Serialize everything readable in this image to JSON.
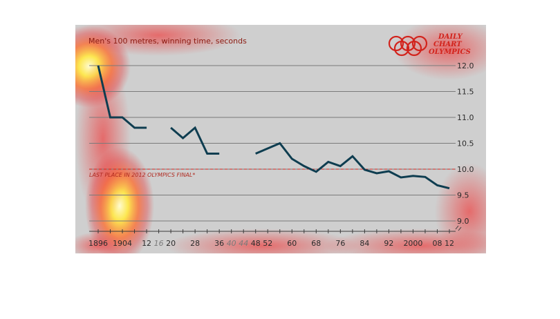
{
  "colors": {
    "line": "#0e3d50",
    "accent": "#d2231c",
    "grid": "#7a7a7a",
    "background": "#cfcfcf"
  },
  "branding": {
    "lines": [
      "DAILY",
      "CHART",
      "OLYMPICS"
    ],
    "logo": "olympic-rings-icon"
  },
  "chart_data": {
    "type": "line",
    "title": "Men's 100 metres, winning time, seconds",
    "xlabel": "",
    "ylabel": "",
    "ylim": [
      9.0,
      12.0
    ],
    "yticks": [
      "12.0",
      "11.5",
      "11.0",
      "10.5",
      "10.0",
      "9.5",
      "9.0"
    ],
    "ytick_values": [
      12.0,
      11.5,
      11.0,
      10.5,
      10.0,
      9.5,
      9.0
    ],
    "axis_break": true,
    "grid": true,
    "xticks": [
      {
        "label": "1896",
        "year": 1896,
        "missing": false
      },
      {
        "label": "1904",
        "year": 1904,
        "missing": false
      },
      {
        "label": "12",
        "year": 1912,
        "missing": false
      },
      {
        "label": "16",
        "year": 1916,
        "missing": true
      },
      {
        "label": "20",
        "year": 1920,
        "missing": false
      },
      {
        "label": "28",
        "year": 1928,
        "missing": false
      },
      {
        "label": "36",
        "year": 1936,
        "missing": false
      },
      {
        "label": "40",
        "year": 1940,
        "missing": true
      },
      {
        "label": "44",
        "year": 1944,
        "missing": true
      },
      {
        "label": "48",
        "year": 1948,
        "missing": false
      },
      {
        "label": "52",
        "year": 1952,
        "missing": false
      },
      {
        "label": "60",
        "year": 1960,
        "missing": false
      },
      {
        "label": "68",
        "year": 1968,
        "missing": false
      },
      {
        "label": "76",
        "year": 1976,
        "missing": false
      },
      {
        "label": "84",
        "year": 1984,
        "missing": false
      },
      {
        "label": "92",
        "year": 1992,
        "missing": false
      },
      {
        "label": "2000",
        "year": 2000,
        "missing": false
      },
      {
        "label": "08",
        "year": 2008,
        "missing": false
      },
      {
        "label": "12",
        "year": 2012,
        "missing": false
      }
    ],
    "series": [
      {
        "segments": [
          [
            [
              1896,
              12.0
            ],
            [
              1900,
              11.0
            ],
            [
              1904,
              11.0
            ],
            [
              1908,
              10.8
            ],
            [
              1912,
              10.8
            ]
          ],
          [
            [
              1920,
              10.8
            ],
            [
              1924,
              10.6
            ],
            [
              1928,
              10.8
            ],
            [
              1932,
              10.3
            ],
            [
              1936,
              10.3
            ]
          ],
          [
            [
              1948,
              10.3
            ],
            [
              1952,
              10.4
            ],
            [
              1956,
              10.5
            ],
            [
              1960,
              10.2
            ],
            [
              1964,
              10.06
            ],
            [
              1968,
              9.95
            ],
            [
              1972,
              10.14
            ],
            [
              1976,
              10.06
            ],
            [
              1980,
              10.25
            ],
            [
              1984,
              9.99
            ],
            [
              1988,
              9.92
            ],
            [
              1992,
              9.96
            ],
            [
              1996,
              9.84
            ],
            [
              2000,
              9.87
            ],
            [
              2004,
              9.85
            ],
            [
              2008,
              9.69
            ],
            [
              2012,
              9.63
            ]
          ]
        ]
      }
    ],
    "reference_line": {
      "value": 10.0,
      "label": "LAST PLACE IN 2012 OLYMPICS FINAL*"
    }
  }
}
